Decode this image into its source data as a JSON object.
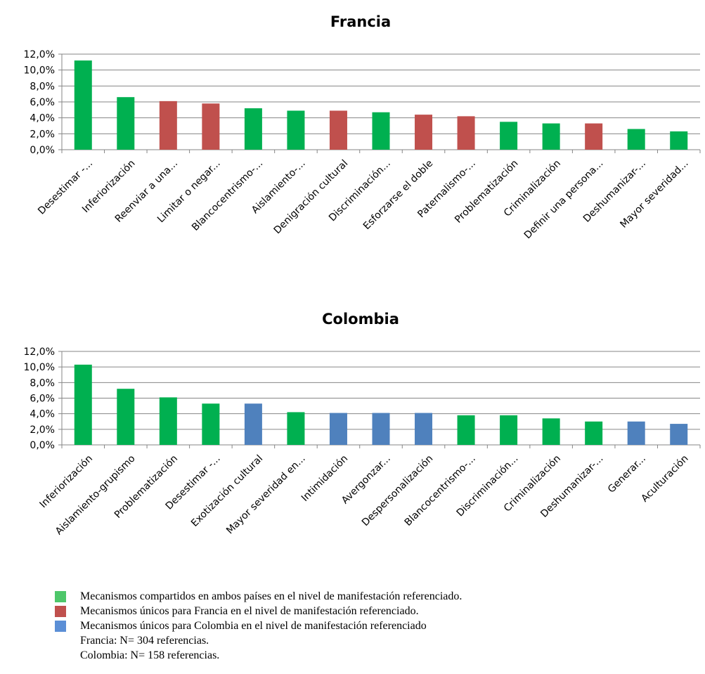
{
  "chart_data": [
    {
      "type": "bar",
      "title": "Francia",
      "ylim": [
        0,
        12
      ],
      "yticks": [
        "0,0%",
        "2,0%",
        "4,0%",
        "6,0%",
        "8,0%",
        "10,0%",
        "12,0%"
      ],
      "grid": true,
      "categories": [
        "Desestimar -...",
        "Inferiorización",
        "Reenviar a una...",
        "Limitar o negar...",
        "Blancocentrismo-...",
        "Aislamiento-...",
        "Denigración cultural",
        "Discriminación...",
        "Esforzarse el doble",
        "Paternalismo-...",
        "Problematización",
        "Criminalización",
        "Definir una persona...",
        "Deshumanizar-...",
        "Mayor severidad..."
      ],
      "values": [
        11.2,
        6.6,
        6.1,
        5.8,
        5.2,
        4.9,
        4.9,
        4.7,
        4.4,
        4.2,
        3.5,
        3.3,
        3.3,
        2.6,
        2.3
      ],
      "groups": [
        "shared",
        "shared",
        "france",
        "france",
        "shared",
        "shared",
        "france",
        "shared",
        "france",
        "france",
        "shared",
        "shared",
        "france",
        "shared",
        "shared"
      ]
    },
    {
      "type": "bar",
      "title": "Colombia",
      "ylim": [
        0,
        12
      ],
      "yticks": [
        "0,0%",
        "2,0%",
        "4,0%",
        "6,0%",
        "8,0%",
        "10,0%",
        "12,0%"
      ],
      "grid": true,
      "categories": [
        "Inferiorización",
        "Aislamiento-grupismo",
        "Problematización",
        "Desestimar -...",
        "Exotización cultural",
        "Mayor severidad en...",
        "Intimidación",
        "Avergonzar...",
        "Despersonalización",
        "Blancocentrismo-...",
        "Discriminación...",
        "Criminalización",
        "Deshumanizar-...",
        "Generar...",
        "Aculturación"
      ],
      "values": [
        10.3,
        7.2,
        6.1,
        5.3,
        5.3,
        4.2,
        4.1,
        4.1,
        4.1,
        3.8,
        3.8,
        3.4,
        3.0,
        3.0,
        2.7
      ],
      "groups": [
        "shared",
        "shared",
        "shared",
        "shared",
        "colombia",
        "shared",
        "colombia",
        "colombia",
        "colombia",
        "shared",
        "shared",
        "shared",
        "shared",
        "colombia",
        "colombia"
      ]
    }
  ],
  "colors": {
    "shared": "#00b050",
    "france": "#c0504d",
    "colombia": "#4f81bd",
    "legend_shared": "#4ec76a",
    "legend_france": "#c0504d",
    "legend_colombia": "#5b8fd6",
    "grid": "#868686"
  },
  "legend": {
    "shared": "Mecanismos compartidos en ambos países en el nivel de manifestación referenciado.",
    "france": "Mecanismos únicos para Francia en el nivel de manifestación referenciado.",
    "colombia": "Mecanismos únicos para Colombia en el nivel de manifestación referenciado",
    "note_france": "Francia: N= 304 referencias.",
    "note_colombia": "Colombia: N= 158 referencias."
  }
}
